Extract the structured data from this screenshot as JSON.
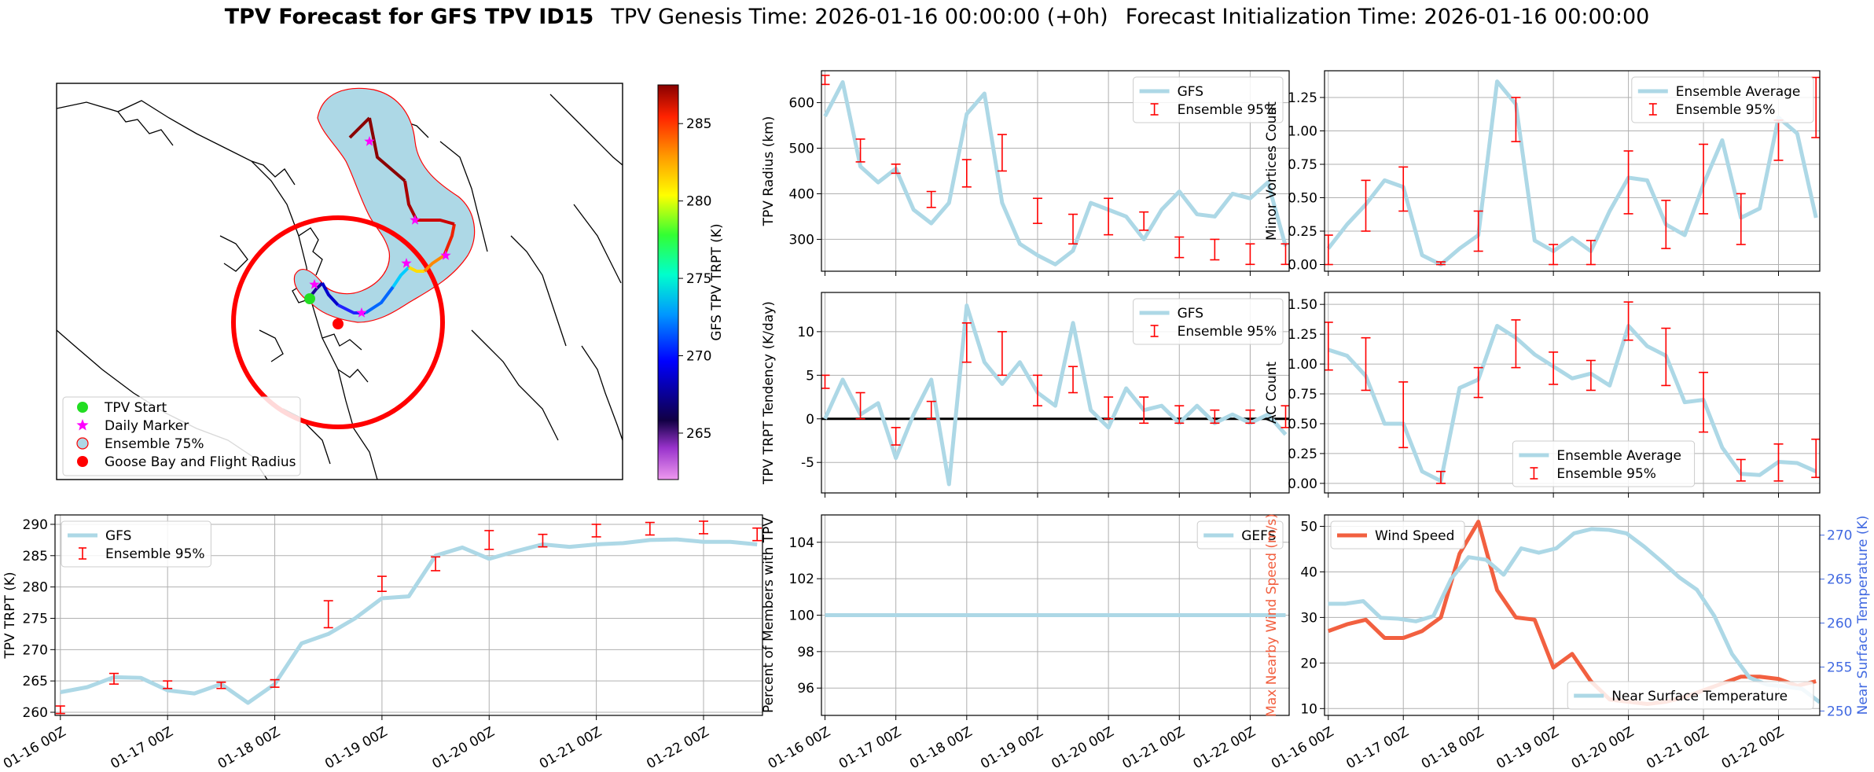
{
  "title": {
    "bold": "TPV Forecast for GFS TPV ID15",
    "genesis": "TPV Genesis Time: 2026-01-16 00:00:00 (+0h)",
    "init": "Forecast Initialization Time: 2026-01-16 00:00:00"
  },
  "colors": {
    "gfs_line": "#add8e6",
    "ensemble_bar": "#ff0000",
    "wind": "#f26040",
    "temp_axis": "#4169e1",
    "tpv_start": "#22dd22",
    "daily_marker": "#ff00ff",
    "flight_radius": "#ff0000"
  },
  "chart_data": [
    {
      "id": "map",
      "type": "map",
      "colorbar": {
        "label": "GFS TPV TRPT (K)",
        "range": [
          262,
          287.5
        ],
        "ticks": [
          "265",
          "270",
          "275",
          "280",
          "285"
        ]
      },
      "legend": [
        {
          "label": "TPV Start",
          "marker": "green-circle"
        },
        {
          "label": "Daily Marker",
          "marker": "magenta-star"
        },
        {
          "label": "Ensemble 75%",
          "marker": "lightblue-circle"
        },
        {
          "label": "Goose Bay and Flight Radius",
          "marker": "red-circle"
        }
      ],
      "legend_position": "bottom-left"
    },
    {
      "id": "radius",
      "type": "line",
      "ylabel": "TPV Radius (km)",
      "ylim": [
        230,
        670
      ],
      "yticks": [
        300,
        400,
        500,
        600
      ],
      "legend": [
        "GFS",
        "Ensemble 95%"
      ],
      "legend_position": "top-right",
      "gfs": [
        [
          0,
          570
        ],
        [
          0.25,
          645
        ],
        [
          0.5,
          460
        ],
        [
          0.75,
          425
        ],
        [
          1,
          455
        ],
        [
          1.25,
          365
        ],
        [
          1.5,
          335
        ],
        [
          1.75,
          380
        ],
        [
          2,
          575
        ],
        [
          2.25,
          620
        ],
        [
          2.5,
          380
        ],
        [
          2.75,
          290
        ],
        [
          3,
          265
        ],
        [
          3.25,
          245
        ],
        [
          3.5,
          275
        ],
        [
          3.75,
          380
        ],
        [
          4,
          365
        ],
        [
          4.25,
          350
        ],
        [
          4.5,
          300
        ],
        [
          4.75,
          365
        ],
        [
          5,
          405
        ],
        [
          5.25,
          355
        ],
        [
          5.5,
          350
        ],
        [
          5.75,
          400
        ],
        [
          6,
          390
        ],
        [
          6.25,
          425
        ],
        [
          6.5,
          285
        ]
      ],
      "ensemble": [
        [
          0,
          640,
          660
        ],
        [
          0.5,
          470,
          520
        ],
        [
          1,
          445,
          465
        ],
        [
          1.5,
          370,
          405
        ],
        [
          2,
          415,
          475
        ],
        [
          2.5,
          450,
          530
        ],
        [
          3,
          335,
          390
        ],
        [
          3.5,
          290,
          355
        ],
        [
          4,
          310,
          390
        ],
        [
          4.5,
          320,
          360
        ],
        [
          5,
          260,
          305
        ],
        [
          5.5,
          255,
          300
        ],
        [
          6,
          245,
          290
        ],
        [
          6.5,
          245,
          290
        ]
      ]
    },
    {
      "id": "minor",
      "type": "line",
      "ylabel": "Minor Vortices Count",
      "ylim": [
        -0.05,
        1.45
      ],
      "yticks": [
        "0.00",
        "0.25",
        "0.50",
        "0.75",
        "1.00",
        "1.25"
      ],
      "legend": [
        "Ensemble Average",
        "Ensemble 95%"
      ],
      "legend_position": "top-right",
      "gfs": [
        [
          0,
          0.12
        ],
        [
          0.25,
          0.3
        ],
        [
          0.5,
          0.45
        ],
        [
          0.75,
          0.63
        ],
        [
          1,
          0.58
        ],
        [
          1.25,
          0.07
        ],
        [
          1.5,
          0.0
        ],
        [
          1.75,
          0.12
        ],
        [
          2,
          0.22
        ],
        [
          2.25,
          1.37
        ],
        [
          2.5,
          1.2
        ],
        [
          2.75,
          0.18
        ],
        [
          3,
          0.1
        ],
        [
          3.25,
          0.2
        ],
        [
          3.5,
          0.1
        ],
        [
          3.75,
          0.4
        ],
        [
          4,
          0.65
        ],
        [
          4.25,
          0.63
        ],
        [
          4.5,
          0.3
        ],
        [
          4.75,
          0.22
        ],
        [
          5,
          0.6
        ],
        [
          5.25,
          0.93
        ],
        [
          5.5,
          0.35
        ],
        [
          5.75,
          0.42
        ],
        [
          6,
          1.1
        ],
        [
          6.25,
          0.98
        ],
        [
          6.5,
          0.35
        ]
      ],
      "ensemble": [
        [
          0,
          0.0,
          0.22
        ],
        [
          0.5,
          0.25,
          0.63
        ],
        [
          1,
          0.4,
          0.73
        ],
        [
          1.5,
          0,
          0.02
        ],
        [
          2,
          0.1,
          0.4
        ],
        [
          2.5,
          0.92,
          1.25
        ],
        [
          3,
          0.0,
          0.15
        ],
        [
          3.5,
          0.0,
          0.18
        ],
        [
          4,
          0.38,
          0.85
        ],
        [
          4.5,
          0.12,
          0.48
        ],
        [
          5,
          0.38,
          0.9
        ],
        [
          5.5,
          0.15,
          0.53
        ],
        [
          6,
          0.78,
          1.08
        ],
        [
          6.5,
          0.95,
          1.4
        ]
      ]
    },
    {
      "id": "tendency",
      "type": "line",
      "ylabel": "TPV TRPT Tendency (K/day)",
      "ylim": [
        -8.5,
        14.5
      ],
      "yticks": [
        -5,
        0,
        5,
        10
      ],
      "legend": [
        "GFS",
        "Ensemble 95%"
      ],
      "legend_position": "top-right",
      "gfs": [
        [
          0,
          0.0
        ],
        [
          0.25,
          4.5
        ],
        [
          0.5,
          0.5
        ],
        [
          0.75,
          1.8
        ],
        [
          1,
          -4.5
        ],
        [
          1.25,
          0.5
        ],
        [
          1.5,
          4.5
        ],
        [
          1.75,
          -7.5
        ],
        [
          2,
          13
        ],
        [
          2.25,
          6.5
        ],
        [
          2.5,
          4
        ],
        [
          2.75,
          6.5
        ],
        [
          3,
          3
        ],
        [
          3.25,
          1.5
        ],
        [
          3.5,
          11
        ],
        [
          3.75,
          1
        ],
        [
          4,
          -1
        ],
        [
          4.25,
          3.5
        ],
        [
          4.5,
          1
        ],
        [
          4.75,
          1.5
        ],
        [
          5,
          -0.5
        ],
        [
          5.25,
          1.5
        ],
        [
          5.5,
          -0.5
        ],
        [
          5.75,
          0.5
        ],
        [
          6,
          -0.5
        ],
        [
          6.25,
          0.5
        ],
        [
          6.5,
          -1.8
        ]
      ],
      "ensemble": [
        [
          0,
          3.5,
          5
        ],
        [
          0.5,
          0,
          3
        ],
        [
          1,
          -3,
          -1
        ],
        [
          1.5,
          0,
          2
        ],
        [
          2,
          6.5,
          11
        ],
        [
          2.5,
          5,
          10
        ],
        [
          3,
          1.5,
          5
        ],
        [
          3.5,
          3,
          6
        ],
        [
          4,
          0,
          2.5
        ],
        [
          4.5,
          -0.5,
          2.5
        ],
        [
          5,
          -0.5,
          1.5
        ],
        [
          5.5,
          -0.5,
          1
        ],
        [
          6,
          -0.5,
          1
        ],
        [
          6.5,
          -1,
          1.5
        ]
      ]
    },
    {
      "id": "ac",
      "type": "line",
      "ylabel": "AC Count",
      "ylim": [
        -0.08,
        1.6
      ],
      "yticks": [
        "0.00",
        "0.25",
        "0.50",
        "0.75",
        "1.00",
        "1.25",
        "1.50"
      ],
      "legend": [
        "Ensemble Average",
        "Ensemble 95%"
      ],
      "legend_position": "bottom-center",
      "gfs": [
        [
          0,
          1.12
        ],
        [
          0.25,
          1.07
        ],
        [
          0.5,
          0.9
        ],
        [
          0.75,
          0.5
        ],
        [
          1,
          0.5
        ],
        [
          1.25,
          0.1
        ],
        [
          1.5,
          0.02
        ],
        [
          1.75,
          0.8
        ],
        [
          2,
          0.87
        ],
        [
          2.25,
          1.32
        ],
        [
          2.5,
          1.22
        ],
        [
          2.75,
          1.08
        ],
        [
          3,
          0.98
        ],
        [
          3.25,
          0.88
        ],
        [
          3.5,
          0.92
        ],
        [
          3.75,
          0.82
        ],
        [
          4,
          1.32
        ],
        [
          4.25,
          1.15
        ],
        [
          4.5,
          1.07
        ],
        [
          4.75,
          0.68
        ],
        [
          5,
          0.7
        ],
        [
          5.25,
          0.3
        ],
        [
          5.5,
          0.08
        ],
        [
          5.75,
          0.07
        ],
        [
          6,
          0.18
        ],
        [
          6.25,
          0.17
        ],
        [
          6.5,
          0.1
        ]
      ],
      "ensemble": [
        [
          0,
          0.95,
          1.35
        ],
        [
          0.5,
          0.78,
          1.22
        ],
        [
          1,
          0.3,
          0.85
        ],
        [
          1.5,
          0,
          0.1
        ],
        [
          2,
          0.72,
          0.97
        ],
        [
          2.5,
          0.97,
          1.37
        ],
        [
          3,
          0.83,
          1.1
        ],
        [
          3.5,
          0.78,
          1.03
        ],
        [
          4,
          1.2,
          1.52
        ],
        [
          4.5,
          0.82,
          1.3
        ],
        [
          5,
          0.43,
          0.93
        ],
        [
          5.5,
          0.02,
          0.2
        ],
        [
          6,
          0.02,
          0.33
        ],
        [
          6.5,
          0.05,
          0.37
        ]
      ]
    },
    {
      "id": "trpt",
      "type": "line",
      "ylabel": "TPV TRPT (K)",
      "ylim": [
        259.5,
        291.5
      ],
      "yticks": [
        260,
        265,
        270,
        275,
        280,
        285,
        290
      ],
      "legend": [
        "GFS",
        "Ensemble 95%"
      ],
      "legend_position": "top-left",
      "gfs": [
        [
          0,
          263.2
        ],
        [
          0.25,
          264
        ],
        [
          0.5,
          265.6
        ],
        [
          0.75,
          265.5
        ],
        [
          1,
          263.5
        ],
        [
          1.25,
          263
        ],
        [
          1.5,
          264.5
        ],
        [
          1.75,
          261.5
        ],
        [
          2,
          264.5
        ],
        [
          2.25,
          271
        ],
        [
          2.5,
          272.5
        ],
        [
          2.75,
          275
        ],
        [
          3,
          278.2
        ],
        [
          3.25,
          278.5
        ],
        [
          3.5,
          285
        ],
        [
          3.75,
          286.3
        ],
        [
          4,
          284.5
        ],
        [
          4.25,
          285.7
        ],
        [
          4.5,
          286.8
        ],
        [
          4.75,
          286.4
        ],
        [
          5,
          286.8
        ],
        [
          5.25,
          287
        ],
        [
          5.5,
          287.5
        ],
        [
          5.75,
          287.6
        ],
        [
          6,
          287.2
        ],
        [
          6.25,
          287.2
        ],
        [
          6.5,
          286.8
        ]
      ],
      "ensemble": [
        [
          0,
          259.8,
          261
        ],
        [
          0.5,
          264.5,
          266.2
        ],
        [
          1,
          263.8,
          265
        ],
        [
          1.5,
          263.8,
          264.8
        ],
        [
          2,
          264,
          265.2
        ],
        [
          2.5,
          273.5,
          277.8
        ],
        [
          3,
          279.3,
          281.7
        ],
        [
          3.5,
          282.6,
          284.8
        ],
        [
          4,
          286,
          289
        ],
        [
          4.5,
          286.4,
          288.4
        ],
        [
          5,
          288,
          290
        ],
        [
          5.5,
          288.3,
          290.3
        ],
        [
          6,
          288.5,
          290.5
        ],
        [
          6.5,
          287.4,
          289.4
        ]
      ]
    },
    {
      "id": "percent",
      "type": "line",
      "ylabel": "Percent of Members with TPV",
      "ylim": [
        94.5,
        105.5
      ],
      "yticks": [
        96,
        98,
        100,
        102,
        104
      ],
      "legend": [
        "GEFS"
      ],
      "legend_position": "top-right",
      "gfs": [
        [
          0,
          100
        ],
        [
          6.5,
          100
        ]
      ]
    },
    {
      "id": "wind",
      "type": "line",
      "ylabel": "Max Nearby Wind Speed (m/s)",
      "ylabel2": "Near Surface Temperature (K)",
      "ylim": [
        8.5,
        52.5
      ],
      "yticks": [
        10,
        20,
        30,
        40,
        50
      ],
      "ylim2": [
        249.5,
        272.3
      ],
      "yticks2": [
        250,
        255,
        260,
        265,
        270
      ],
      "legend": [
        "Wind Speed"
      ],
      "legend2": [
        "Near Surface Temperature"
      ],
      "legend_position": "top-left",
      "legend2_position": "bottom-right",
      "wind": [
        [
          0,
          27
        ],
        [
          0.25,
          28.5
        ],
        [
          0.5,
          29.5
        ],
        [
          0.75,
          25.5
        ],
        [
          1,
          25.5
        ],
        [
          1.25,
          27
        ],
        [
          1.5,
          30
        ],
        [
          1.75,
          44
        ],
        [
          2,
          51
        ],
        [
          2.25,
          36
        ],
        [
          2.5,
          30
        ],
        [
          2.75,
          29.5
        ],
        [
          3,
          19
        ],
        [
          3.25,
          22
        ],
        [
          3.5,
          16
        ],
        [
          3.75,
          12
        ],
        [
          4,
          11.5
        ],
        [
          4.25,
          11
        ],
        [
          4.5,
          11.5
        ],
        [
          4.75,
          12.5
        ],
        [
          5,
          14
        ],
        [
          5.25,
          15.5
        ],
        [
          5.5,
          17
        ],
        [
          5.75,
          17
        ],
        [
          6,
          16.5
        ],
        [
          6.25,
          15
        ],
        [
          6.5,
          16
        ]
      ],
      "temp": [
        [
          0,
          262.2
        ],
        [
          0.25,
          262.2
        ],
        [
          0.5,
          262.5
        ],
        [
          0.75,
          260.6
        ],
        [
          1,
          260.5
        ],
        [
          1.25,
          260.2
        ],
        [
          1.5,
          260.8
        ],
        [
          1.75,
          265
        ],
        [
          2,
          267.5
        ],
        [
          2.25,
          267.2
        ],
        [
          2.5,
          265.5
        ],
        [
          2.75,
          268.5
        ],
        [
          3,
          268
        ],
        [
          3.25,
          268.5
        ],
        [
          3.5,
          270.2
        ],
        [
          3.75,
          270.7
        ],
        [
          4,
          270.6
        ],
        [
          4.25,
          270.2
        ],
        [
          4.5,
          268.7
        ],
        [
          4.75,
          267
        ],
        [
          5,
          265.2
        ],
        [
          5.25,
          263.8
        ],
        [
          5.5,
          260.8
        ],
        [
          5.75,
          256.5
        ],
        [
          6,
          253.8
        ],
        [
          6.25,
          253
        ],
        [
          6.5,
          252.8
        ],
        [
          6.75,
          252.5
        ],
        [
          7,
          251
        ]
      ]
    }
  ],
  "xticks": [
    "01-16 00Z",
    "01-17 00Z",
    "01-18 00Z",
    "01-19 00Z",
    "01-20 00Z",
    "01-21 00Z",
    "01-22 00Z"
  ]
}
